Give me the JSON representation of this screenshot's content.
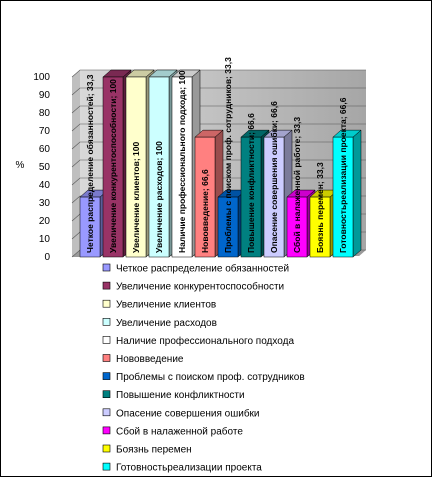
{
  "chart_data": {
    "type": "bar3d",
    "y_axis_label": "%",
    "ylim": [
      0,
      100
    ],
    "yticks": [
      0,
      10,
      20,
      30,
      40,
      50,
      60,
      70,
      80,
      90,
      100
    ],
    "grid": true,
    "legend": "bottom",
    "data_label_separator": "; ",
    "series": [
      {
        "name": "Четкое распределение обязанностей",
        "color": "#9999ff",
        "values": [
          33.3
        ],
        "value_labels": [
          "33,3"
        ]
      },
      {
        "name": "Увеличение конкурентоспособности",
        "color": "#993366",
        "values": [
          100
        ],
        "value_labels": [
          "100"
        ]
      },
      {
        "name": "Увеличение клиентов",
        "color": "#ffffcc",
        "values": [
          100
        ],
        "value_labels": [
          "100"
        ]
      },
      {
        "name": "Увеличение расходов",
        "color": "#ccffff",
        "values": [
          100
        ],
        "value_labels": [
          "100"
        ]
      },
      {
        "name": "Наличие профессионального подхода",
        "color": "#ffffff",
        "values": [
          100
        ],
        "value_labels": [
          "100"
        ]
      },
      {
        "name": "Нововведение",
        "color": "#ff8080",
        "values": [
          66.6
        ],
        "value_labels": [
          "66,6"
        ]
      },
      {
        "name": "Проблемы с поиском проф. сотрудников",
        "color": "#0066cc",
        "values": [
          33.3
        ],
        "value_labels": [
          "33,3"
        ]
      },
      {
        "name": "Повышение конфликтности",
        "color": "#008080",
        "values": [
          66.6
        ],
        "value_labels": [
          "66,6"
        ]
      },
      {
        "name": "Опасение совершения ошибки",
        "color": "#ccccff",
        "values": [
          66.6
        ],
        "value_labels": [
          "66,6"
        ]
      },
      {
        "name": "Сбой в налаженной работе",
        "color": "#ff00ff",
        "values": [
          33.3
        ],
        "value_labels": [
          "33,3"
        ]
      },
      {
        "name": "Боязнь перемен",
        "color": "#ffff00",
        "values": [
          33.3
        ],
        "value_labels": [
          "33,3"
        ]
      },
      {
        "name": "Готовностьреализации проекта",
        "color": "#00ffff",
        "values": [
          66.6
        ],
        "value_labels": [
          "66,6"
        ]
      }
    ]
  }
}
